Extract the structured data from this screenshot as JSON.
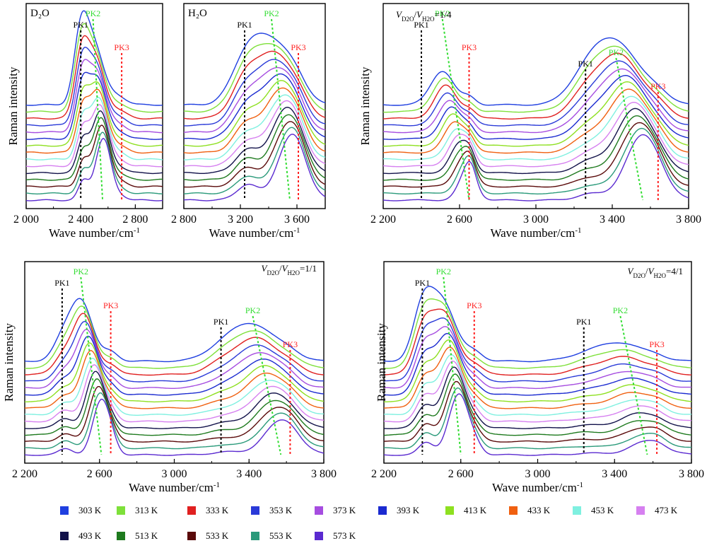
{
  "figure": {
    "temperatures": [
      "303 K",
      "313 K",
      "333 K",
      "353 K",
      "373 K",
      "393 K",
      "413 K",
      "433 K",
      "453 K",
      "473 K",
      "493 K",
      "513 K",
      "533 K",
      "553 K",
      "573 K"
    ],
    "colors": [
      "#1f3fe0",
      "#7ee03a",
      "#e02020",
      "#2a3ad8",
      "#a64de0",
      "#1a2ad0",
      "#8ee020",
      "#f06010",
      "#7ff0e0",
      "#d680f0",
      "#12124a",
      "#1e7a1e",
      "#5a0a0a",
      "#2a9a7a",
      "#5a2ad0"
    ],
    "pk1_color": "#000000",
    "pk2_color": "#33dd33",
    "pk3_color": "#ff2222"
  },
  "chart_data": [
    {
      "type": "line",
      "title": "D₂O",
      "xlabel": "Wave number/cm⁻¹",
      "ylabel": "Raman intensity",
      "xlim": [
        2000,
        3000
      ],
      "xticks": [
        2000,
        2400,
        2800
      ],
      "xtick_labels": [
        "2 000",
        "2 400",
        "2 800"
      ],
      "grid": false,
      "peak_markers": [
        {
          "label": "PK1",
          "x_top": 2400,
          "x_bottom": 2400
        },
        {
          "label": "PK2",
          "x_top": 2490,
          "x_bottom": 2560
        },
        {
          "label": "PK3",
          "x_top": 2700,
          "x_bottom": 2700
        }
      ],
      "peaks": [
        {
          "name": "PK1",
          "center": [
            2400,
            2420
          ],
          "width": 50,
          "amp": [
            0.95,
            0.3
          ]
        },
        {
          "name": "PK2",
          "center": [
            2490,
            2565
          ],
          "width": 75,
          "amp": [
            1.0,
            1.0
          ]
        },
        {
          "name": "PK3",
          "center": [
            2680,
            2700
          ],
          "width": 60,
          "amp": [
            0.12,
            0.05
          ]
        }
      ]
    },
    {
      "type": "line",
      "title": "H₂O",
      "xlabel": "Wave number/cm⁻¹",
      "ylabel": "",
      "xlim": [
        2800,
        3800
      ],
      "xticks": [
        2800,
        3200,
        3600
      ],
      "xtick_labels": [
        "2 800",
        "3 200",
        "3 600"
      ],
      "grid": false,
      "peak_markers": [
        {
          "label": "PK1",
          "x_top": 3230,
          "x_bottom": 3230
        },
        {
          "label": "PK2",
          "x_top": 3420,
          "x_bottom": 3550
        },
        {
          "label": "PK3",
          "x_top": 3610,
          "x_bottom": 3610
        }
      ],
      "peaks": [
        {
          "name": "PK1",
          "center": [
            3230,
            3250
          ],
          "width": 100,
          "amp": [
            0.6,
            0.25
          ]
        },
        {
          "name": "PK2",
          "center": [
            3420,
            3560
          ],
          "width": 130,
          "amp": [
            1.0,
            1.0
          ]
        },
        {
          "name": "PK3",
          "center": [
            3600,
            3620
          ],
          "width": 80,
          "amp": [
            0.25,
            0.1
          ]
        }
      ]
    },
    {
      "type": "line",
      "title": "V_D2O/V_H2O=1/4",
      "xlabel": "Wave number/cm⁻¹",
      "ylabel": "Raman intensity",
      "xlim": [
        2200,
        3800
      ],
      "xticks": [
        2200,
        2600,
        3000,
        3400,
        3800
      ],
      "xtick_labels": [
        "2 200",
        "2 600",
        "3 000",
        "3 400",
        "3 800"
      ],
      "grid": false,
      "peak_markers": [
        {
          "label": "PK1",
          "x_top": 2400,
          "x_bottom": 2400
        },
        {
          "label": "PK2",
          "x_top": 2510,
          "x_bottom": 2650
        },
        {
          "label": "PK3",
          "x_top": 2650,
          "x_bottom": 2650
        },
        {
          "label": "PK1",
          "x_top": 3260,
          "x_bottom": 3260
        },
        {
          "label": "PK2",
          "x_top": 3420,
          "x_bottom": 3560
        },
        {
          "label": "PK3",
          "x_top": 3640,
          "x_bottom": 3640
        }
      ],
      "peaks": [
        {
          "name": "PK2",
          "center": [
            2510,
            2640
          ],
          "width": 60,
          "amp": [
            0.55,
            0.45
          ]
        },
        {
          "name": "PK3",
          "center": [
            2650,
            2660
          ],
          "width": 35,
          "amp": [
            0.12,
            0.2
          ]
        },
        {
          "name": "PK1",
          "center": [
            3260,
            3280
          ],
          "width": 90,
          "amp": [
            0.35,
            0.1
          ]
        },
        {
          "name": "PK2",
          "center": [
            3420,
            3560
          ],
          "width": 120,
          "amp": [
            1.0,
            1.05
          ]
        },
        {
          "name": "PK3",
          "center": [
            3640,
            3650
          ],
          "width": 60,
          "amp": [
            0.15,
            0.05
          ]
        }
      ]
    },
    {
      "type": "line",
      "title": "V_D2O/V_H2O=1/1",
      "xlabel": "Wave number/cm⁻¹",
      "ylabel": "Raman intensity",
      "xlim": [
        2200,
        3800
      ],
      "xticks": [
        2200,
        2600,
        3000,
        3400,
        3800
      ],
      "xtick_labels": [
        "2 200",
        "2 600",
        "3 000",
        "3 400",
        "3 800"
      ],
      "grid": false,
      "peak_markers": [
        {
          "label": "PK1",
          "x_top": 2400,
          "x_bottom": 2400
        },
        {
          "label": "PK2",
          "x_top": 2500,
          "x_bottom": 2610
        },
        {
          "label": "PK3",
          "x_top": 2660,
          "x_bottom": 2660
        },
        {
          "label": "PK1",
          "x_top": 3250,
          "x_bottom": 3250
        },
        {
          "label": "PK2",
          "x_top": 3420,
          "x_bottom": 3570
        },
        {
          "label": "PK3",
          "x_top": 3620,
          "x_bottom": 3620
        }
      ],
      "peaks": [
        {
          "name": "PK1",
          "center": [
            2400,
            2420
          ],
          "width": 50,
          "amp": [
            0.3,
            0.1
          ]
        },
        {
          "name": "PK2",
          "center": [
            2500,
            2610
          ],
          "width": 60,
          "amp": [
            1.0,
            0.9
          ]
        },
        {
          "name": "PK3",
          "center": [
            2660,
            2670
          ],
          "width": 40,
          "amp": [
            0.15,
            0.1
          ]
        },
        {
          "name": "PK1",
          "center": [
            3250,
            3270
          ],
          "width": 90,
          "amp": [
            0.15,
            0.05
          ]
        },
        {
          "name": "PK2",
          "center": [
            3420,
            3570
          ],
          "width": 120,
          "amp": [
            0.6,
            0.55
          ]
        },
        {
          "name": "PK3",
          "center": [
            3620,
            3630
          ],
          "width": 60,
          "amp": [
            0.1,
            0.05
          ]
        }
      ]
    },
    {
      "type": "line",
      "title": "V_D2O/V_H2O=4/1",
      "xlabel": "Wave number/cm⁻¹",
      "ylabel": "Raman intensity",
      "xlim": [
        2200,
        3800
      ],
      "xticks": [
        2200,
        2600,
        3000,
        3400,
        3800
      ],
      "xtick_labels": [
        "2 200",
        "2 600",
        "3 000",
        "3 400",
        "3 800"
      ],
      "grid": false,
      "peak_markers": [
        {
          "label": "PK1",
          "x_top": 2400,
          "x_bottom": 2400
        },
        {
          "label": "PK2",
          "x_top": 2510,
          "x_bottom": 2600
        },
        {
          "label": "PK3",
          "x_top": 2670,
          "x_bottom": 2670
        },
        {
          "label": "PK1",
          "x_top": 3240,
          "x_bottom": 3240
        },
        {
          "label": "PK2",
          "x_top": 3430,
          "x_bottom": 3570
        },
        {
          "label": "PK3",
          "x_top": 3620,
          "x_bottom": 3620
        }
      ],
      "peaks": [
        {
          "name": "PK1",
          "center": [
            2400,
            2420
          ],
          "width": 50,
          "amp": [
            0.75,
            0.2
          ]
        },
        {
          "name": "PK2",
          "center": [
            2500,
            2590
          ],
          "width": 70,
          "amp": [
            1.0,
            1.0
          ]
        },
        {
          "name": "PK3",
          "center": [
            2670,
            2680
          ],
          "width": 45,
          "amp": [
            0.15,
            0.1
          ]
        },
        {
          "name": "PK1",
          "center": [
            3240,
            3260
          ],
          "width": 90,
          "amp": [
            0.08,
            0.03
          ]
        },
        {
          "name": "PK2",
          "center": [
            3430,
            3570
          ],
          "width": 120,
          "amp": [
            0.3,
            0.22
          ]
        },
        {
          "name": "PK3",
          "center": [
            3620,
            3630
          ],
          "width": 50,
          "amp": [
            0.05,
            0.04
          ]
        }
      ]
    }
  ]
}
